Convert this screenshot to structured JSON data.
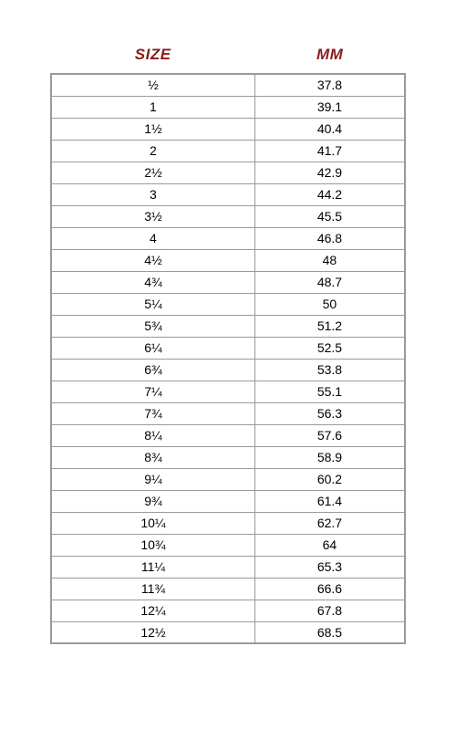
{
  "table": {
    "type": "table",
    "background_color": "#ffffff",
    "border_color": "#9a9a9a",
    "header_color": "#8a1c1c",
    "header_font_style": "italic",
    "header_font_weight": "bold",
    "header_fontsize": 17,
    "cell_fontsize": 14,
    "cell_text_color": "#000000",
    "column_align": [
      "center",
      "center"
    ],
    "columns": [
      "SIZE",
      "MM"
    ],
    "rows": [
      [
        "½",
        "37.8"
      ],
      [
        "1",
        "39.1"
      ],
      [
        "1½",
        "40.4"
      ],
      [
        "2",
        "41.7"
      ],
      [
        "2½",
        "42.9"
      ],
      [
        "3",
        "44.2"
      ],
      [
        "3½",
        "45.5"
      ],
      [
        "4",
        "46.8"
      ],
      [
        "4½",
        "48"
      ],
      [
        "4¾",
        "48.7"
      ],
      [
        "5¼",
        "50"
      ],
      [
        "5¾",
        "51.2"
      ],
      [
        "6¼",
        "52.5"
      ],
      [
        "6¾",
        "53.8"
      ],
      [
        "7¼",
        "55.1"
      ],
      [
        "7¾",
        "56.3"
      ],
      [
        "8¼",
        "57.6"
      ],
      [
        "8¾",
        "58.9"
      ],
      [
        "9¼",
        "60.2"
      ],
      [
        "9¾",
        "61.4"
      ],
      [
        "10¼",
        "62.7"
      ],
      [
        "10¾",
        "64"
      ],
      [
        "11¼",
        "65.3"
      ],
      [
        "11¾",
        "66.6"
      ],
      [
        "12¼",
        "67.8"
      ],
      [
        "12½",
        "68.5"
      ]
    ]
  }
}
